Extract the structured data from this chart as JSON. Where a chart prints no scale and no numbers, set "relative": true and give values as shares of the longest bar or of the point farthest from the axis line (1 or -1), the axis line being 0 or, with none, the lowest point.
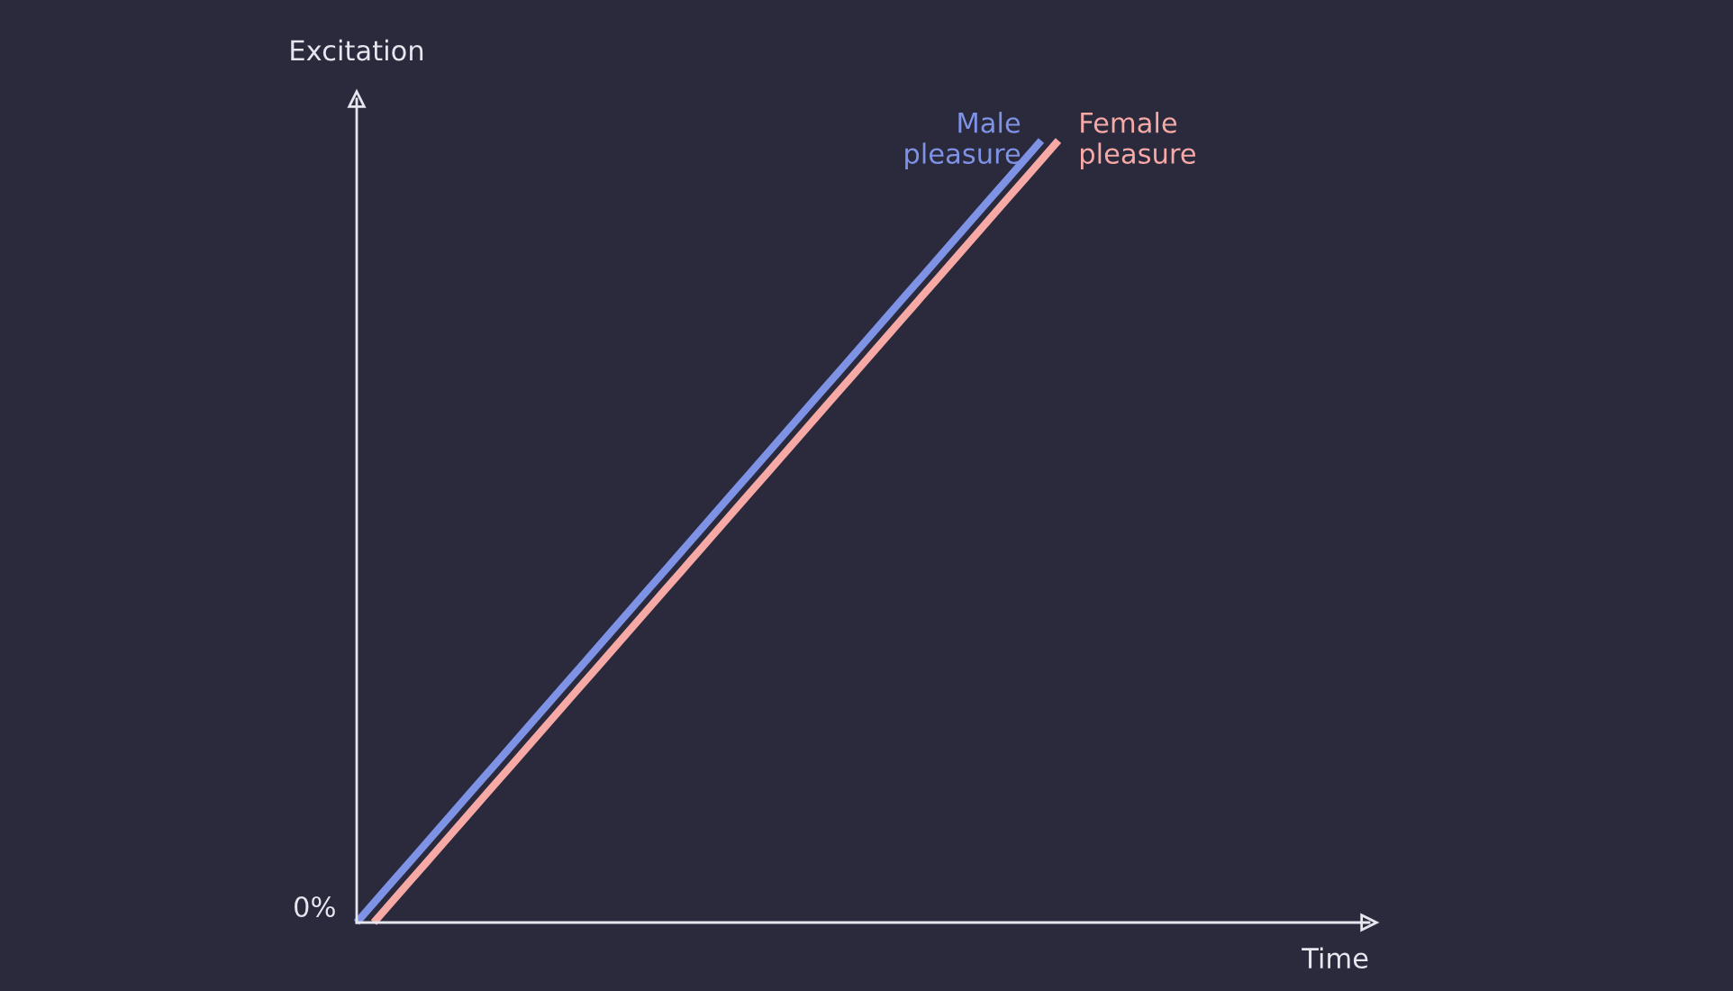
{
  "chart_data": {
    "type": "line",
    "relative": true,
    "ylabel": "Excitation",
    "annotations": [
      "0%",
      "Time"
    ],
    "legend": false,
    "marker": "none",
    "line_style": "solid",
    "categories": [
      null,
      null,
      null,
      null,
      null,
      null,
      null,
      null,
      null,
      null,
      null,
      null,
      null,
      null,
      null,
      null,
      null,
      null,
      null,
      null,
      null,
      null,
      null,
      null,
      null,
      null,
      null,
      null,
      null,
      null,
      null,
      null,
      null,
      null,
      null,
      null,
      null,
      null,
      null,
      null,
      null,
      null
    ],
    "series": [
      {
        "name": "Male\npleasure",
        "color": "#7f93e6",
        "values": [
          0,
          0.025,
          0.05,
          0.075,
          0.1,
          0.125,
          0.15,
          0.175,
          0.2,
          0.225,
          0.25,
          0.275,
          0.3,
          0.325,
          0.35,
          0.375,
          0.4,
          0.425,
          0.45,
          0.475,
          0.5,
          0.525,
          0.55,
          0.575,
          0.6,
          0.625,
          0.65,
          0.675,
          0.7,
          0.725,
          0.75,
          0.775,
          0.8,
          0.825,
          0.85,
          0.875,
          0.9,
          0.925,
          0.95,
          0.975,
          1,
          null
        ]
      },
      {
        "name": "Female\npleasure",
        "color": "#f7a9a6",
        "values": [
          null,
          0,
          0.025,
          0.05,
          0.075,
          0.1,
          0.125,
          0.15,
          0.175,
          0.2,
          0.225,
          0.25,
          0.275,
          0.3,
          0.325,
          0.35,
          0.375,
          0.4,
          0.425,
          0.45,
          0.475,
          0.5,
          0.525,
          0.55,
          0.575,
          0.6,
          0.625,
          0.65,
          0.675,
          0.7,
          0.725,
          0.75,
          0.775,
          0.8,
          0.825,
          0.85,
          0.875,
          0.9,
          0.925,
          0.95,
          0.975,
          1
        ]
      }
    ]
  }
}
